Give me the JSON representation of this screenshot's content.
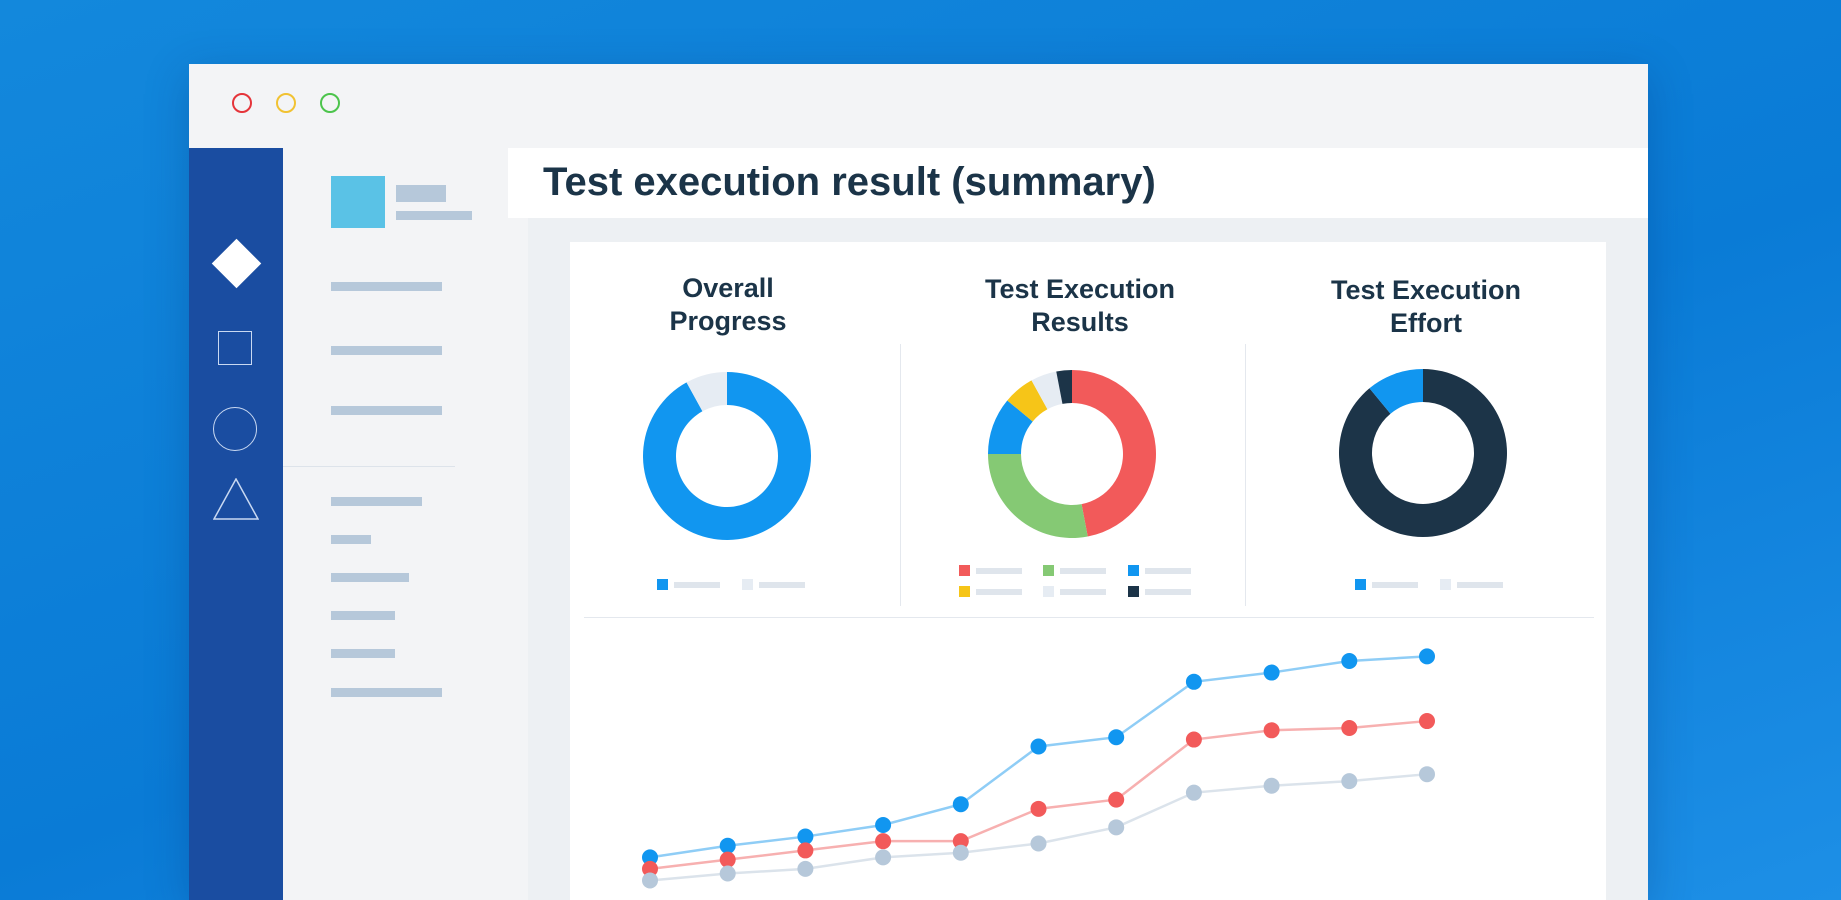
{
  "window": {
    "controls": [
      "close",
      "minimize",
      "maximize"
    ]
  },
  "icon_bar": {
    "icons": [
      "diamond-icon",
      "square-icon",
      "circle-icon",
      "triangle-icon"
    ]
  },
  "page": {
    "title": "Test execution result (summary)"
  },
  "panels": [
    {
      "title_line1": "Overall",
      "title_line2": "Progress"
    },
    {
      "title_line1": "Test Execution",
      "title_line2": "Results"
    },
    {
      "title_line1": "Test Execution",
      "title_line2": "Effort"
    }
  ],
  "chart_data": [
    {
      "type": "pie",
      "title": "Overall Progress",
      "slices": [
        {
          "value": 92,
          "color": "#1196f0"
        },
        {
          "value": 8,
          "color": "#e6ecf3"
        }
      ]
    },
    {
      "type": "pie",
      "title": "Test Execution Results",
      "slices": [
        {
          "value": 47,
          "color": "#f25a5a"
        },
        {
          "value": 28,
          "color": "#85c974"
        },
        {
          "value": 11,
          "color": "#1196f0"
        },
        {
          "value": 6,
          "color": "#f6c518"
        },
        {
          "value": 5,
          "color": "#e6ecf3"
        },
        {
          "value": 3,
          "color": "#1c3448"
        }
      ]
    },
    {
      "type": "pie",
      "title": "Test Execution Effort",
      "slices": [
        {
          "value": 89,
          "color": "#1c3448"
        },
        {
          "value": 11,
          "color": "#1196f0"
        }
      ]
    },
    {
      "type": "line",
      "x": [
        1,
        2,
        3,
        4,
        5,
        6,
        7,
        8,
        9,
        10,
        11
      ],
      "ylim": [
        0,
        100
      ],
      "series": [
        {
          "color": "#1196f0",
          "values": [
            15,
            20,
            24,
            29,
            38,
            63,
            67,
            91,
            95,
            100,
            102
          ]
        },
        {
          "color": "#f25a5a",
          "values": [
            10,
            14,
            18,
            22,
            22,
            36,
            40,
            66,
            70,
            71,
            74
          ]
        },
        {
          "color": "#b6c8da",
          "values": [
            5,
            8,
            10,
            15,
            17,
            21,
            28,
            43,
            46,
            48,
            51
          ]
        }
      ]
    }
  ]
}
